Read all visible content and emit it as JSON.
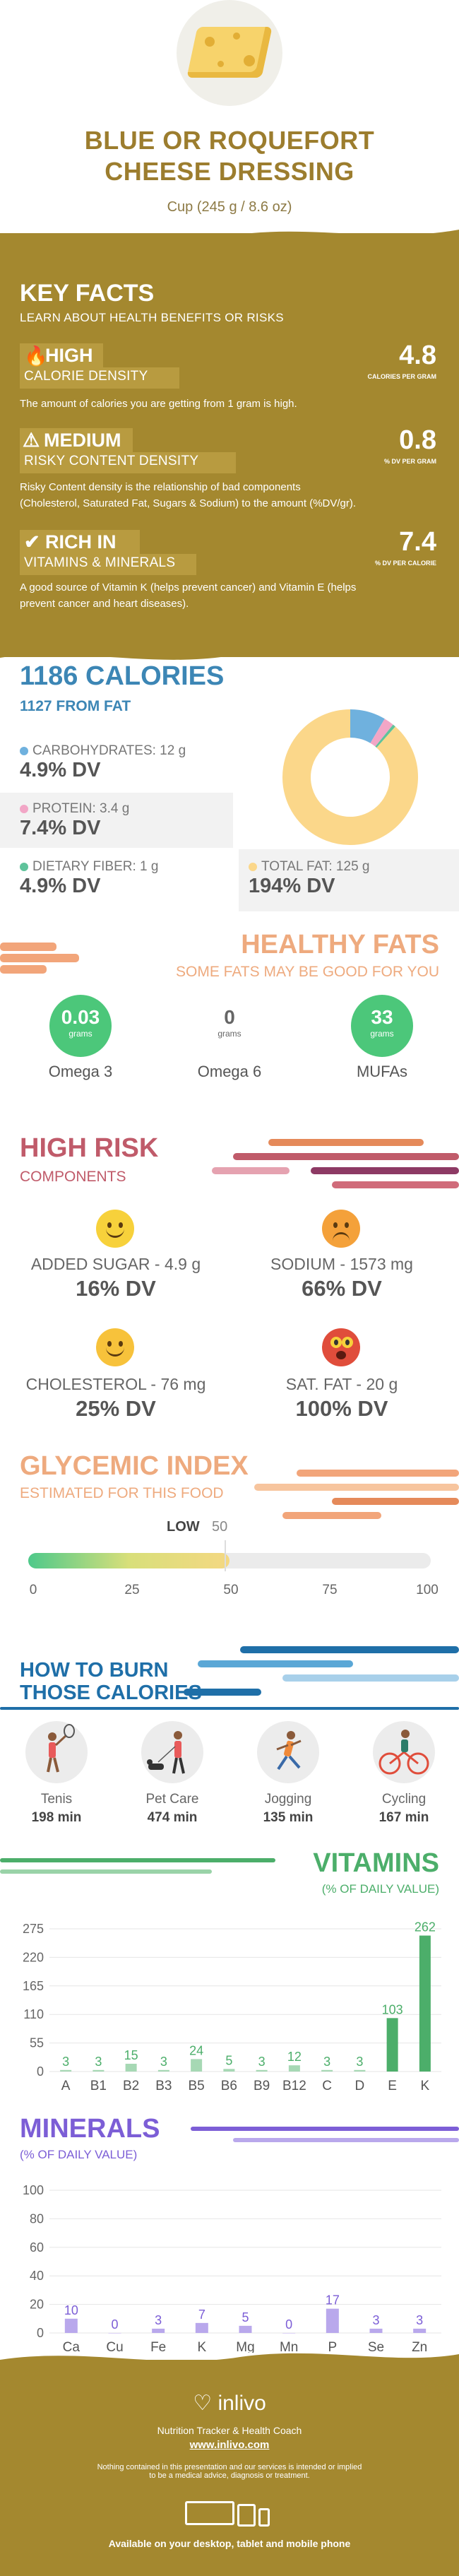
{
  "header": {
    "title_line1": "BLUE OR ROQUEFORT",
    "title_line2": "CHEESE DRESSING",
    "serving": "Cup (245 g / 8.6 oz)"
  },
  "key_facts": {
    "title": "KEY FACTS",
    "subtitle": "LEARN ABOUT HEALTH BENEFITS OR RISKS",
    "items": [
      {
        "level": "HIGH",
        "label": "CALORIE DENSITY",
        "value": "4.8",
        "unit": "CALORIES PER GRAM",
        "description": "The amount of calories you are getting from 1 gram is high."
      },
      {
        "level": "MEDIUM",
        "label": "RISKY CONTENT DENSITY",
        "value": "0.8",
        "unit": "% DV PER GRAM",
        "description_l1": "Risky Content density is the relationship of bad components",
        "description_l2": "(Cholesterol, Saturated Fat, Sugars & Sodium) to the amount (%DV/gr)."
      },
      {
        "level": "RICH IN",
        "label": "VITAMINS & MINERALS",
        "value": "7.4",
        "unit": "% DV PER CALORIE",
        "description_l1": "A good source of Vitamin K (helps prevent cancer) and Vitamin E (helps",
        "description_l2": "prevent cancer and heart diseases)."
      }
    ]
  },
  "calories": {
    "title": "1186 CALORIES",
    "from_fat": "1127 FROM FAT",
    "nutrients": [
      {
        "label": "CARBOHYDRATES: 12 g",
        "dv": "4.9% DV",
        "color": "#6fb1de"
      },
      {
        "label": "PROTEIN: 3.4 g",
        "dv": "7.4% DV",
        "color": "#f2a6c6"
      },
      {
        "label": "DIETARY FIBER: 1 g",
        "dv": "4.9% DV",
        "color": "#5fc39b"
      },
      {
        "label": "TOTAL FAT: 125 g",
        "dv": "194% DV",
        "color": "#fbd78a"
      }
    ],
    "donut": [
      {
        "name": "carbohydrates",
        "grams": 12,
        "color": "#6fb1de"
      },
      {
        "name": "protein",
        "grams": 3.4,
        "color": "#f2a6c6"
      },
      {
        "name": "fiber",
        "grams": 1,
        "color": "#5fc39b"
      },
      {
        "name": "fat",
        "grams": 125,
        "color": "#fbd78a"
      }
    ]
  },
  "healthy_fats": {
    "title": "HEALTHY FATS",
    "subtitle": "SOME FATS MAY BE GOOD FOR YOU",
    "items": [
      {
        "value": "0.03",
        "unit": "grams",
        "name": "Omega 3",
        "color": "#4cc77a"
      },
      {
        "value": "0",
        "unit": "grams",
        "name": "Omega 6",
        "color": "#ffffff"
      },
      {
        "value": "33",
        "unit": "grams",
        "name": "MUFAs",
        "color": "#4cc77a"
      }
    ]
  },
  "high_risk": {
    "title": "HIGH RISK",
    "subtitle": "COMPONENTS",
    "items": [
      {
        "label": "ADDED SUGAR - 4.9 g",
        "dv": "16% DV",
        "face": "happy-face-icon",
        "color": "#f7d13b"
      },
      {
        "label": "SODIUM - 1573 mg",
        "dv": "66% DV",
        "face": "sad-face-icon",
        "color": "#f4a13a"
      },
      {
        "label": "CHOLESTEROL - 76 mg",
        "dv": "25% DV",
        "face": "happy-face-icon",
        "color": "#f7c23b"
      },
      {
        "label": "SAT. FAT - 20 g",
        "dv": "100% DV",
        "face": "shocked-face-icon",
        "color": "#e04d3b"
      }
    ]
  },
  "glycemic": {
    "title": "GLYCEMIC INDEX",
    "subtitle": "ESTIMATED FOR THIS FOOD",
    "level_label": "LOW",
    "value": "50",
    "value_num": 50,
    "ticks": [
      "0",
      "25",
      "50",
      "75",
      "100"
    ]
  },
  "burn": {
    "title_l1": "HOW TO BURN",
    "title_l2": "THOSE CALORIES",
    "activities": [
      {
        "name": "Tenis",
        "minutes": "198 min",
        "icon": "tennis-player-icon"
      },
      {
        "name": "Pet Care",
        "minutes": "474 min",
        "icon": "dog-walker-icon"
      },
      {
        "name": "Jogging",
        "minutes": "135 min",
        "icon": "jogger-icon"
      },
      {
        "name": "Cycling",
        "minutes": "167 min",
        "icon": "cyclist-icon"
      }
    ]
  },
  "vitamins": {
    "title": "VITAMINS",
    "subtitle": "(% OF DAILY VALUE)",
    "yticks": [
      "275",
      "220",
      "165",
      "110",
      "55",
      "0"
    ]
  },
  "minerals": {
    "title": "MINERALS",
    "subtitle": "(% OF DAILY VALUE)",
    "yticks": [
      "100",
      "80",
      "60",
      "40",
      "20",
      "0"
    ]
  },
  "chart_data": [
    {
      "type": "bar",
      "title": "VITAMINS",
      "ylabel": "(% OF DAILY VALUE)",
      "categories": [
        "A",
        "B1",
        "B2",
        "B3",
        "B5",
        "B6",
        "B9",
        "B12",
        "C",
        "D",
        "E",
        "K"
      ],
      "values": [
        3,
        3,
        15,
        3,
        24,
        5,
        3,
        12,
        3,
        3,
        103,
        262
      ],
      "ylim": [
        0,
        275
      ],
      "grid": true,
      "colors": {
        "normal": "#4cae6a",
        "highlight": "#4cae6a"
      }
    },
    {
      "type": "bar",
      "title": "MINERALS",
      "ylabel": "(% OF DAILY VALUE)",
      "categories": [
        "Ca",
        "Cu",
        "Fe",
        "K",
        "Mg",
        "Mn",
        "P",
        "Se",
        "Zn"
      ],
      "values": [
        10,
        0,
        3,
        7,
        5,
        0,
        17,
        3,
        3
      ],
      "ylim": [
        0,
        100
      ],
      "grid": true,
      "colors": {
        "normal": "#7c5ed6"
      }
    }
  ],
  "footer": {
    "brand": "inlivo",
    "tagline": "Nutrition Tracker & Health Coach",
    "url": "www.inlivo.com",
    "disclaimer_l1": "Nothing contained in this presentation and our services is intended or implied",
    "disclaimer_l2": "to be a medical advice, diagnosis or treatment.",
    "available": "Available on your desktop, tablet and mobile phone"
  }
}
